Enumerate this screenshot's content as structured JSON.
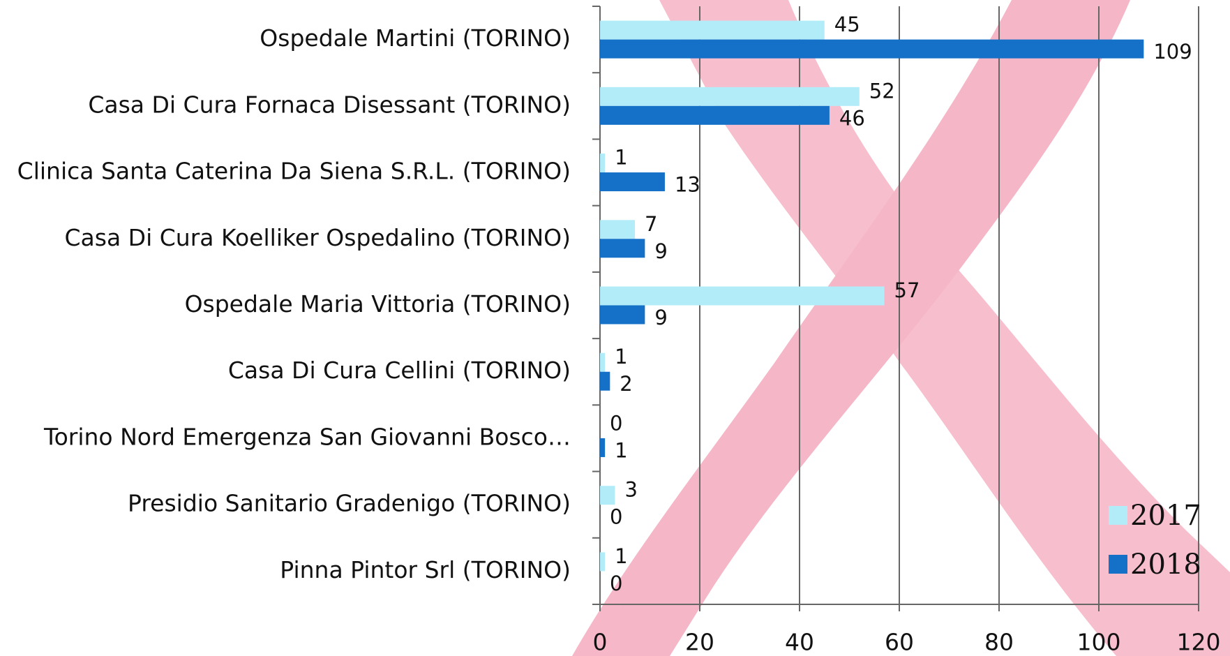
{
  "chart_data": {
    "type": "hbar",
    "categories": [
      "Ospedale Martini (TORINO)",
      "Casa Di Cura Fornaca Disessant (TORINO)",
      "Clinica Santa Caterina Da Siena S.R.L. (TORINO)",
      "Casa Di Cura Koelliker Ospedalino (TORINO)",
      "Ospedale Maria Vittoria (TORINO)",
      "Casa Di Cura Cellini (TORINO)",
      "Torino Nord Emergenza San Giovanni Bosco…",
      "Presidio Sanitario Gradenigo (TORINO)",
      "Pinna Pintor Srl (TORINO)"
    ],
    "series": [
      {
        "name": "2017",
        "color": "#b3ecf9",
        "values": [
          45,
          52,
          1,
          7,
          57,
          1,
          0,
          3,
          1
        ]
      },
      {
        "name": "2018",
        "color": "#1570c8",
        "values": [
          109,
          46,
          13,
          9,
          9,
          2,
          1,
          0,
          0
        ]
      }
    ],
    "xlim": [
      0,
      120
    ],
    "xticks": [
      0,
      20,
      40,
      60,
      80,
      100,
      120
    ],
    "grid": true,
    "legend": "bottom-right"
  }
}
